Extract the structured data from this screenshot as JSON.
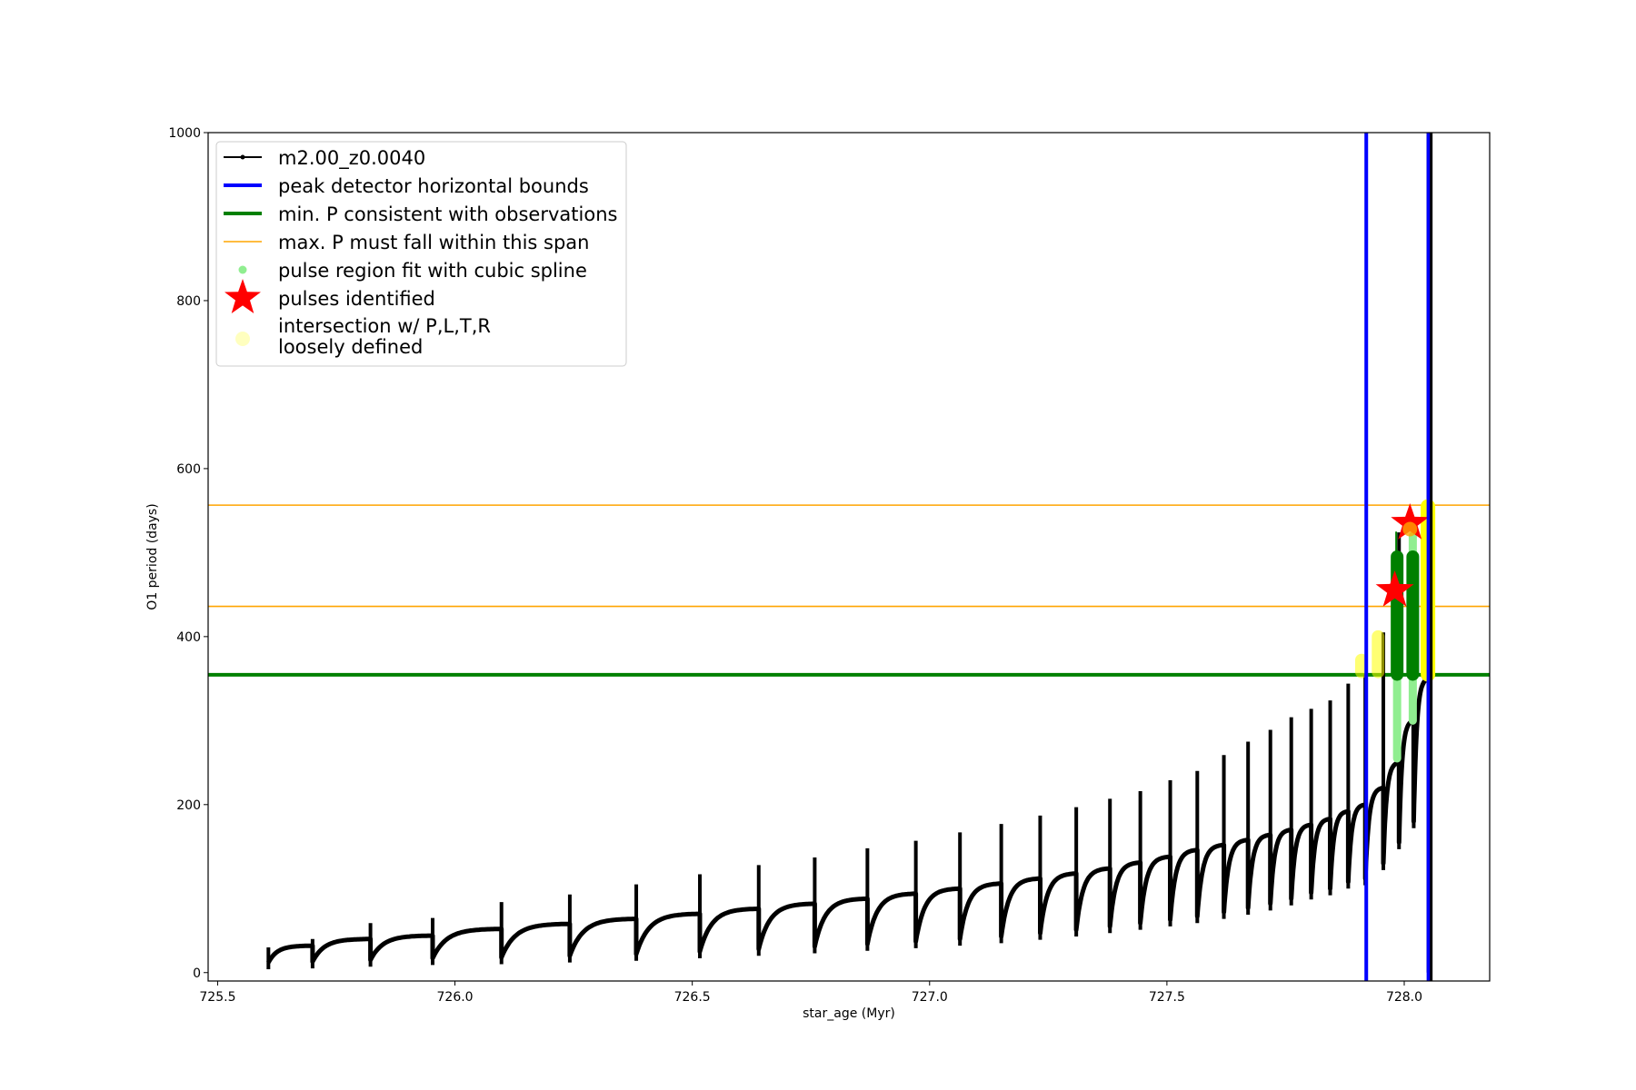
{
  "chart_data": {
    "type": "line",
    "title": "",
    "xlabel": "star_age (Myr)",
    "ylabel": "O1 period (days)",
    "xlim": [
      725.48,
      728.18
    ],
    "ylim": [
      -10,
      1000
    ],
    "xticks": [
      "725.5",
      "726.0",
      "726.5",
      "727.0",
      "727.5",
      "728.0"
    ],
    "xtick_values": [
      725.5,
      726.0,
      726.5,
      727.0,
      727.5,
      728.0
    ],
    "yticks": [
      "0",
      "200",
      "400",
      "600",
      "800",
      "1000"
    ],
    "ytick_values": [
      0,
      200,
      400,
      600,
      800,
      1000
    ],
    "grid": false,
    "legend_placement": "upper-left",
    "series": [
      {
        "name": "m2.00_z0.0040",
        "color": "#000000",
        "pulse_ages": [
          725.607,
          725.7,
          725.822,
          725.953,
          726.098,
          726.242,
          726.382,
          726.516,
          726.64,
          726.758,
          726.869,
          726.971,
          727.064,
          727.151,
          727.233,
          727.309,
          727.38,
          727.444,
          727.507,
          727.564,
          727.62,
          727.671,
          727.718,
          727.762,
          727.804,
          727.844,
          727.882,
          727.918,
          727.956,
          727.989,
          728.02,
          728.051
        ],
        "pre_pulse_period": [
          27,
          32,
          40,
          44,
          52,
          58,
          64,
          70,
          76,
          82,
          88,
          94,
          100,
          106,
          112,
          118,
          124,
          131,
          138,
          146,
          152,
          158,
          164,
          170,
          176,
          183,
          192,
          200,
          220,
          250,
          300,
          350
        ],
        "pulse_peak_period": [
          30,
          40,
          59,
          65,
          84,
          93,
          105,
          117,
          128,
          137,
          148,
          157,
          167,
          177,
          187,
          197,
          207,
          216,
          229,
          240,
          259,
          275,
          289,
          304,
          314,
          324,
          344,
          355,
          405,
          524,
          510,
          1000
        ],
        "post_pulse_min_period": [
          12,
          13,
          15,
          17,
          18,
          20,
          22,
          25,
          28,
          31,
          34,
          37,
          40,
          43,
          47,
          51,
          55,
          59,
          63,
          67,
          72,
          77,
          82,
          88,
          95,
          100,
          108,
          112,
          130,
          155,
          180,
          0
        ]
      }
    ],
    "vertical_lines": {
      "name": "peak detector horizontal bounds",
      "color": "#0000ff",
      "x": [
        727.92,
        728.051
      ]
    },
    "min_period_line": {
      "name": "min. P consistent with observations",
      "color": "#008000",
      "y": 354.5
    },
    "max_period_span": {
      "name": "max. P must fall within this span",
      "color": "#ffa500",
      "y": [
        436,
        556.5
      ]
    },
    "spline_fit": {
      "name": "pulse region fit with cubic spline",
      "color": "#90ee90",
      "dark_color": "#008000",
      "columns": [
        {
          "x": 727.985,
          "light": [
            255,
            355
          ],
          "dark": [
            355,
            495
          ]
        },
        {
          "x": 728.018,
          "light": [
            300,
            520
          ],
          "dark": [
            355,
            495
          ]
        }
      ]
    },
    "pulses_identified": {
      "name": "pulses identified",
      "color": "#ff0000",
      "points": [
        {
          "x": 727.98,
          "y": 455
        },
        {
          "x": 728.012,
          "y": 535
        }
      ]
    },
    "intersection": {
      "name_line1": "intersection w/ P,L,T,R",
      "name_line2": "loosely defined",
      "color": "#ffff00",
      "columns": [
        {
          "x": 727.91,
          "y": [
            358,
            372
          ]
        },
        {
          "x": 727.945,
          "y": [
            358,
            400
          ]
        },
        {
          "x": 728.05,
          "y": [
            355,
            555
          ]
        }
      ]
    }
  }
}
